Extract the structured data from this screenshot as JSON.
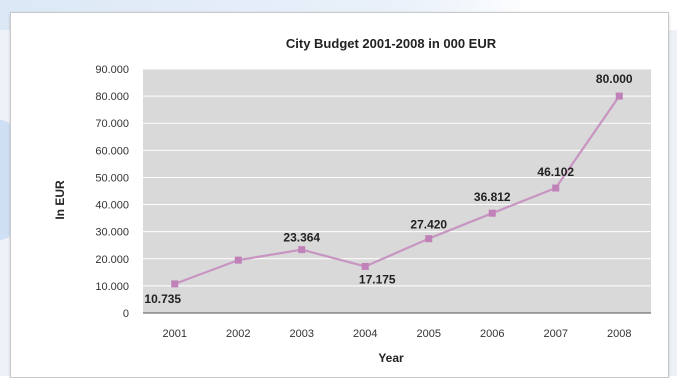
{
  "chart_data": {
    "type": "line",
    "title": "City Budget 2001-2008 in 000 EUR",
    "xlabel": "Year",
    "ylabel": "In EUR",
    "categories": [
      "2001",
      "2002",
      "2003",
      "2004",
      "2005",
      "2006",
      "2007",
      "2008"
    ],
    "series": [
      {
        "values": [
          10735,
          19500,
          23364,
          17175,
          27420,
          36812,
          46102,
          80000
        ],
        "data_labels": [
          "10.735",
          "",
          "23.364",
          "17.175",
          "27.420",
          "36.812",
          "46.102",
          "80.000"
        ]
      }
    ],
    "ylim": [
      0,
      90000
    ],
    "yticks": [
      0,
      10000,
      20000,
      30000,
      40000,
      50000,
      60000,
      70000,
      80000,
      90000
    ],
    "ytick_labels": [
      "0",
      "10.000",
      "20.000",
      "30.000",
      "40.000",
      "50.000",
      "60.000",
      "70.000",
      "80.000",
      "90.000"
    ],
    "grid": true,
    "legend": "none",
    "colors": {
      "line": "#c895c2",
      "marker": "#c080b8",
      "plot_bg": "#d9d9d9",
      "grid": "#ffffff"
    }
  }
}
